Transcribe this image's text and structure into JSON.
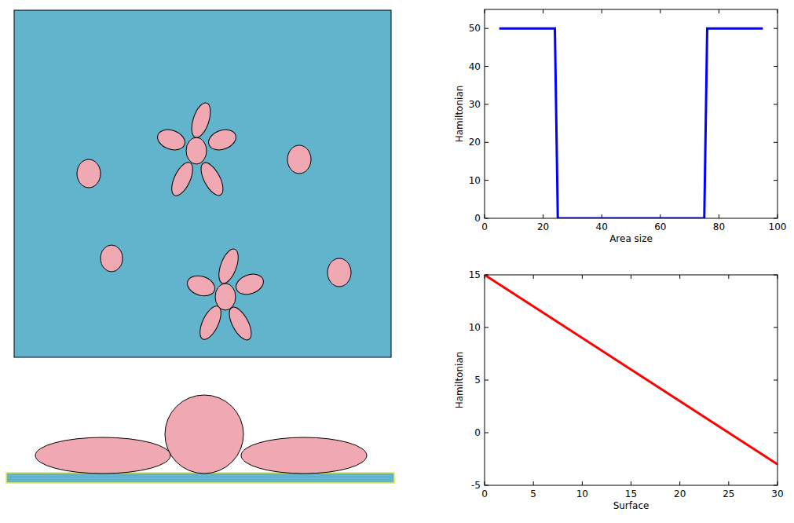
{
  "chart_data": [
    {
      "type": "line",
      "xlabel": "Area size",
      "ylabel": "Hamiltonian",
      "x": [
        5,
        24,
        25,
        75,
        76,
        95
      ],
      "values": [
        50,
        50,
        0,
        0,
        50,
        50
      ],
      "color": "#0000ff",
      "xlim": [
        0,
        100
      ],
      "ylim": [
        0,
        55
      ],
      "xticks": [
        0,
        20,
        40,
        60,
        80,
        100
      ],
      "yticks": [
        0,
        10,
        20,
        30,
        40,
        50
      ]
    },
    {
      "type": "line",
      "xlabel": "Surface",
      "ylabel": "Hamiltonian",
      "x": [
        0,
        30
      ],
      "values": [
        15,
        -3
      ],
      "color": "#ff0000",
      "xlim": [
        0,
        30
      ],
      "ylim": [
        -5,
        15
      ],
      "xticks": [
        0,
        5,
        10,
        15,
        20,
        25,
        30
      ],
      "yticks": [
        -5,
        0,
        5,
        10,
        15
      ]
    }
  ]
}
